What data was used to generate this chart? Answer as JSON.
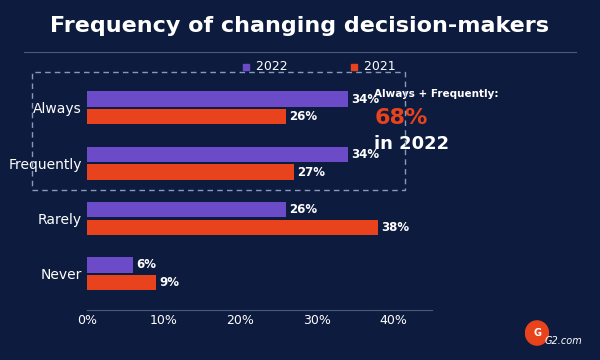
{
  "title": "Frequency of changing decision-makers",
  "background_color": "#0d1b3e",
  "categories": [
    "Always",
    "Frequently",
    "Rarely",
    "Never"
  ],
  "values_2022": [
    34,
    34,
    26,
    6
  ],
  "values_2021": [
    26,
    27,
    38,
    9
  ],
  "color_2022": "#6b4bc8",
  "color_2021": "#e8431c",
  "text_color": "#ffffff",
  "annotation_text_1": "Always + Frequently:",
  "annotation_pct": "68%",
  "annotation_text_2": "in 2022",
  "annotation_color_pct": "#e8431c",
  "xlim": [
    0,
    45
  ],
  "xticks": [
    0,
    10,
    20,
    30,
    40
  ],
  "xtick_labels": [
    "0%",
    "10%",
    "20%",
    "30%",
    "40%"
  ],
  "bar_height": 0.28,
  "bar_gap": 0.04,
  "title_fontsize": 16,
  "legend_fontsize": 9,
  "tick_fontsize": 9,
  "label_fontsize": 10,
  "value_fontsize": 8.5,
  "separator_color": "#4a5a7a",
  "dashed_color": "#8899bb"
}
